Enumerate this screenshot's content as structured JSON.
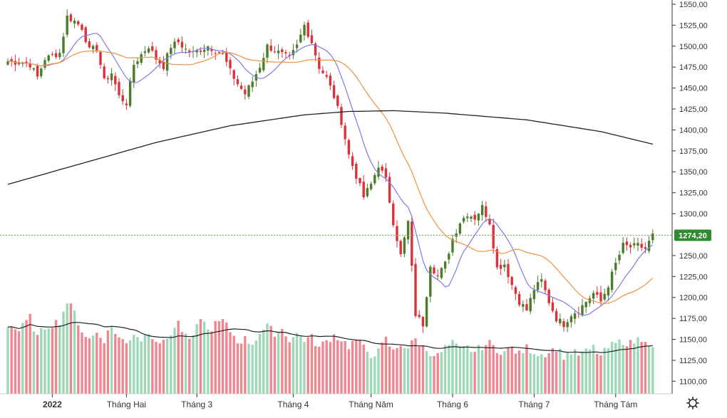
{
  "chart_data": {
    "type": "candlestick",
    "title": "",
    "ylim": [
      1085,
      1560
    ],
    "y_ticks": [
      1550,
      1525,
      1500,
      1475,
      1450,
      1425,
      1400,
      1375,
      1350,
      1325,
      1300,
      1250,
      1225,
      1200,
      1175,
      1150,
      1125,
      1100
    ],
    "y_tick_labels": [
      "1550,00",
      "1525,00",
      "1500,00",
      "1475,00",
      "1450,00",
      "1425,00",
      "1400,00",
      "1375,00",
      "1350,00",
      "1325,00",
      "1300,00",
      "1250,00",
      "1225,00",
      "1200,00",
      "1175,00",
      "1150,00",
      "1125,00",
      "1100,00"
    ],
    "x_labels": [
      {
        "label": "2022",
        "index": 12,
        "bold": true
      },
      {
        "label": "Tháng Hai",
        "index": 32,
        "bold": false
      },
      {
        "label": "Tháng 3",
        "index": 51,
        "bold": false
      },
      {
        "label": "Tháng 4",
        "index": 77,
        "bold": false
      },
      {
        "label": "Tháng Năm",
        "index": 98,
        "bold": false
      },
      {
        "label": "Tháng 6",
        "index": 120,
        "bold": false
      },
      {
        "label": "Tháng 7",
        "index": 142,
        "bold": false
      },
      {
        "label": "Tháng Tám",
        "index": 164,
        "bold": false
      }
    ],
    "last_price": 1274.2,
    "last_price_label": "1274,20",
    "colors": {
      "up": "#4a7c2a",
      "down": "#d9323a",
      "ma_short": "#7b7be8",
      "ma_mid": "#f0913e",
      "ma_long": "#222222",
      "vol_up": "#9ed8b8",
      "vol_down": "#ee8890",
      "vol_ma": "#222222",
      "price_tag": "#2e8b2e",
      "price_line": "#6aa84f"
    },
    "settings_icon": "gear-icon",
    "close_anchors": [
      [
        0,
        1482
      ],
      [
        4,
        1480
      ],
      [
        6,
        1478
      ],
      [
        8,
        1463
      ],
      [
        10,
        1485
      ],
      [
        14,
        1492
      ],
      [
        16,
        1535
      ],
      [
        18,
        1530
      ],
      [
        20,
        1522
      ],
      [
        22,
        1495
      ],
      [
        24,
        1498
      ],
      [
        26,
        1458
      ],
      [
        28,
        1468
      ],
      [
        30,
        1440
      ],
      [
        32,
        1432
      ],
      [
        34,
        1478
      ],
      [
        36,
        1490
      ],
      [
        38,
        1500
      ],
      [
        40,
        1485
      ],
      [
        42,
        1476
      ],
      [
        44,
        1500
      ],
      [
        46,
        1505
      ],
      [
        48,
        1496
      ],
      [
        50,
        1492
      ],
      [
        54,
        1500
      ],
      [
        58,
        1490
      ],
      [
        60,
        1470
      ],
      [
        62,
        1455
      ],
      [
        64,
        1443
      ],
      [
        66,
        1458
      ],
      [
        68,
        1476
      ],
      [
        70,
        1500
      ],
      [
        74,
        1490
      ],
      [
        76,
        1485
      ],
      [
        78,
        1500
      ],
      [
        80,
        1525
      ],
      [
        82,
        1505
      ],
      [
        84,
        1475
      ],
      [
        86,
        1462
      ],
      [
        88,
        1440
      ],
      [
        90,
        1410
      ],
      [
        92,
        1370
      ],
      [
        94,
        1345
      ],
      [
        96,
        1320
      ],
      [
        98,
        1335
      ],
      [
        100,
        1358
      ],
      [
        102,
        1340
      ],
      [
        104,
        1290
      ],
      [
        106,
        1250
      ],
      [
        108,
        1290
      ],
      [
        110,
        1180
      ],
      [
        112,
        1168
      ],
      [
        114,
        1240
      ],
      [
        116,
        1225
      ],
      [
        118,
        1240
      ],
      [
        120,
        1270
      ],
      [
        122,
        1290
      ],
      [
        124,
        1300
      ],
      [
        126,
        1295
      ],
      [
        128,
        1308
      ],
      [
        130,
        1290
      ],
      [
        132,
        1235
      ],
      [
        134,
        1240
      ],
      [
        136,
        1215
      ],
      [
        138,
        1195
      ],
      [
        140,
        1185
      ],
      [
        142,
        1210
      ],
      [
        144,
        1220
      ],
      [
        146,
        1195
      ],
      [
        148,
        1175
      ],
      [
        150,
        1168
      ],
      [
        152,
        1180
      ],
      [
        154,
        1185
      ],
      [
        156,
        1195
      ],
      [
        158,
        1205
      ],
      [
        160,
        1195
      ],
      [
        162,
        1215
      ],
      [
        164,
        1240
      ],
      [
        166,
        1262
      ],
      [
        168,
        1260
      ],
      [
        170,
        1262
      ],
      [
        172,
        1258
      ],
      [
        174,
        1274
      ]
    ],
    "volume_anchors": [
      [
        0,
        1168
      ],
      [
        3,
        1160
      ],
      [
        6,
        1176
      ],
      [
        8,
        1152
      ],
      [
        10,
        1165
      ],
      [
        14,
        1172
      ],
      [
        16,
        1195
      ],
      [
        18,
        1182
      ],
      [
        20,
        1160
      ],
      [
        22,
        1150
      ],
      [
        24,
        1158
      ],
      [
        26,
        1150
      ],
      [
        28,
        1166
      ],
      [
        30,
        1152
      ],
      [
        32,
        1145
      ],
      [
        34,
        1158
      ],
      [
        36,
        1150
      ],
      [
        38,
        1160
      ],
      [
        40,
        1150
      ],
      [
        42,
        1145
      ],
      [
        44,
        1158
      ],
      [
        46,
        1170
      ],
      [
        48,
        1152
      ],
      [
        50,
        1150
      ],
      [
        52,
        1178
      ],
      [
        54,
        1160
      ],
      [
        56,
        1168
      ],
      [
        58,
        1172
      ],
      [
        60,
        1160
      ],
      [
        62,
        1148
      ],
      [
        64,
        1150
      ],
      [
        66,
        1145
      ],
      [
        68,
        1158
      ],
      [
        70,
        1165
      ],
      [
        72,
        1158
      ],
      [
        74,
        1162
      ],
      [
        76,
        1150
      ],
      [
        78,
        1156
      ],
      [
        80,
        1150
      ],
      [
        82,
        1152
      ],
      [
        84,
        1140
      ],
      [
        86,
        1148
      ],
      [
        88,
        1155
      ],
      [
        90,
        1150
      ],
      [
        92,
        1142
      ],
      [
        94,
        1150
      ],
      [
        96,
        1140
      ],
      [
        98,
        1132
      ],
      [
        100,
        1135
      ],
      [
        102,
        1150
      ],
      [
        104,
        1135
      ],
      [
        106,
        1145
      ],
      [
        108,
        1140
      ],
      [
        110,
        1150
      ],
      [
        112,
        1140
      ],
      [
        114,
        1135
      ],
      [
        116,
        1130
      ],
      [
        118,
        1140
      ],
      [
        120,
        1145
      ],
      [
        122,
        1138
      ],
      [
        124,
        1140
      ],
      [
        126,
        1135
      ],
      [
        128,
        1142
      ],
      [
        130,
        1145
      ],
      [
        132,
        1138
      ],
      [
        134,
        1135
      ],
      [
        136,
        1140
      ],
      [
        138,
        1132
      ],
      [
        140,
        1140
      ],
      [
        142,
        1135
      ],
      [
        144,
        1132
      ],
      [
        146,
        1135
      ],
      [
        148,
        1140
      ],
      [
        150,
        1130
      ],
      [
        152,
        1135
      ],
      [
        154,
        1132
      ],
      [
        156,
        1135
      ],
      [
        158,
        1140
      ],
      [
        160,
        1130
      ],
      [
        162,
        1140
      ],
      [
        164,
        1145
      ],
      [
        166,
        1148
      ],
      [
        168,
        1145
      ],
      [
        170,
        1150
      ],
      [
        172,
        1152
      ],
      [
        174,
        1138
      ]
    ]
  }
}
